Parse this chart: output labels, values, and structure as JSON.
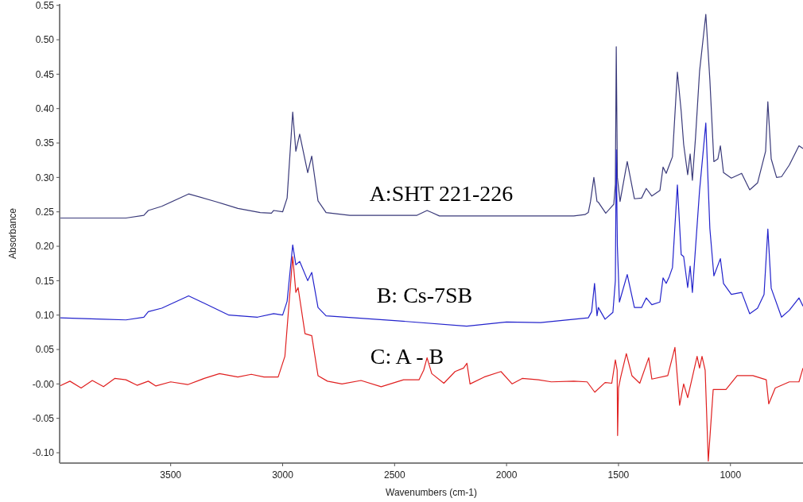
{
  "chart_data": {
    "type": "line",
    "xlabel": "Wavenumbers (cm-1)",
    "ylabel": "Absorbance",
    "xlim": [
      3996,
      676
    ],
    "xticks": [
      3500,
      3000,
      2500,
      2000,
      1500,
      1000
    ],
    "ylim": [
      -0.115,
      0.552
    ],
    "yticks": [
      {
        "value": 0.55,
        "label": "0.55"
      },
      {
        "value": 0.5,
        "label": "0.50"
      },
      {
        "value": 0.45,
        "label": "0.45"
      },
      {
        "value": 0.4,
        "label": "0.40"
      },
      {
        "value": 0.35,
        "label": "0.35"
      },
      {
        "value": 0.3,
        "label": "0.30"
      },
      {
        "value": 0.25,
        "label": "0.25"
      },
      {
        "value": 0.2,
        "label": "0.20"
      },
      {
        "value": 0.15,
        "label": "0.15"
      },
      {
        "value": 0.1,
        "label": "0.10"
      },
      {
        "value": 0.05,
        "label": "0.05"
      },
      {
        "value": 0,
        "label": "-0.00"
      },
      {
        "value": -0.05,
        "label": "-0.05"
      },
      {
        "value": -0.1,
        "label": "-0.10"
      }
    ],
    "grid": false,
    "series": [
      {
        "name": "A:SHT 221-226",
        "color": "#3a3a7a",
        "x": [
          3996,
          3700,
          3620,
          3600,
          3540,
          3420,
          3300,
          3200,
          3100,
          3050,
          3040,
          3000,
          2980,
          2955,
          2941,
          2924,
          2888,
          2870,
          2842,
          2806,
          2700,
          2400,
          2355,
          2334,
          2300,
          2000,
          1700,
          1650,
          1635,
          1625,
          1610,
          1596,
          1590,
          1557,
          1521,
          1514,
          1510,
          1505,
          1493,
          1461,
          1429,
          1397,
          1376,
          1351,
          1315,
          1301,
          1287,
          1273,
          1259,
          1237,
          1220,
          1209,
          1191,
          1180,
          1170,
          1156,
          1138,
          1110,
          1092,
          1074,
          1056,
          1045,
          1031,
          996,
          950,
          914,
          879,
          843,
          833,
          818,
          794,
          772,
          737,
          694,
          676
        ],
        "values": [
          0.241,
          0.241,
          0.245,
          0.252,
          0.258,
          0.276,
          0.265,
          0.255,
          0.249,
          0.248,
          0.252,
          0.25,
          0.27,
          0.395,
          0.338,
          0.363,
          0.307,
          0.331,
          0.266,
          0.249,
          0.245,
          0.245,
          0.252,
          0.249,
          0.244,
          0.244,
          0.244,
          0.246,
          0.249,
          0.265,
          0.3,
          0.265,
          0.264,
          0.248,
          0.261,
          0.29,
          0.49,
          0.3,
          0.265,
          0.323,
          0.269,
          0.27,
          0.284,
          0.273,
          0.281,
          0.315,
          0.306,
          0.318,
          0.33,
          0.453,
          0.396,
          0.348,
          0.304,
          0.334,
          0.296,
          0.358,
          0.454,
          0.537,
          0.442,
          0.323,
          0.327,
          0.346,
          0.307,
          0.299,
          0.306,
          0.282,
          0.292,
          0.338,
          0.41,
          0.327,
          0.3,
          0.301,
          0.318,
          0.346,
          0.342
        ]
      },
      {
        "name": "B: Cs-7SB",
        "color": "#2323cc",
        "x": [
          3996,
          3800,
          3700,
          3620,
          3600,
          3540,
          3420,
          3240,
          3112,
          3040,
          3000,
          2980,
          2955,
          2941,
          2924,
          2888,
          2870,
          2842,
          2806,
          2500,
          2178,
          2000,
          1848,
          1635,
          1620,
          1607,
          1596,
          1590,
          1560,
          1525,
          1514,
          1510,
          1505,
          1496,
          1461,
          1429,
          1397,
          1376,
          1351,
          1315,
          1301,
          1287,
          1273,
          1259,
          1237,
          1220,
          1209,
          1191,
          1180,
          1170,
          1138,
          1110,
          1092,
          1074,
          1045,
          1031,
          996,
          950,
          914,
          879,
          850,
          833,
          818,
          772,
          737,
          694,
          676
        ],
        "values": [
          0.096,
          0.094,
          0.093,
          0.097,
          0.105,
          0.11,
          0.128,
          0.1,
          0.097,
          0.102,
          0.1,
          0.12,
          0.202,
          0.173,
          0.178,
          0.15,
          0.162,
          0.111,
          0.099,
          0.092,
          0.084,
          0.09,
          0.089,
          0.096,
          0.105,
          0.146,
          0.099,
          0.111,
          0.094,
          0.104,
          0.15,
          0.34,
          0.2,
          0.119,
          0.159,
          0.111,
          0.111,
          0.125,
          0.115,
          0.119,
          0.154,
          0.146,
          0.156,
          0.169,
          0.289,
          0.188,
          0.185,
          0.14,
          0.171,
          0.133,
          0.281,
          0.379,
          0.226,
          0.157,
          0.182,
          0.146,
          0.13,
          0.133,
          0.102,
          0.11,
          0.13,
          0.225,
          0.139,
          0.097,
          0.107,
          0.125,
          0.113
        ]
      },
      {
        "name": "C: A - B",
        "color": "#e02020",
        "x": [
          3996,
          3950,
          3900,
          3850,
          3800,
          3750,
          3700,
          3650,
          3600,
          3566,
          3500,
          3424,
          3350,
          3282,
          3200,
          3140,
          3083,
          3020,
          2990,
          2955,
          2941,
          2931,
          2900,
          2870,
          2842,
          2800,
          2735,
          2650,
          2560,
          2460,
          2391,
          2370,
          2355,
          2334,
          2280,
          2230,
          2192,
          2177,
          2163,
          2100,
          2025,
          1975,
          1930,
          1858,
          1800,
          1700,
          1640,
          1606,
          1560,
          1530,
          1514,
          1506,
          1504,
          1500,
          1490,
          1465,
          1440,
          1405,
          1365,
          1351,
          1280,
          1248,
          1227,
          1209,
          1191,
          1149,
          1138,
          1127,
          1113,
          1099,
          1077,
          1020,
          970,
          900,
          840,
          829,
          800,
          737,
          694,
          676
        ],
        "values": [
          -0.003,
          0.004,
          -0.006,
          0.005,
          -0.004,
          0.008,
          0.006,
          -0.002,
          0.004,
          -0.003,
          0.003,
          -0.001,
          0.008,
          0.015,
          0.01,
          0.014,
          0.01,
          0.01,
          0.04,
          0.185,
          0.133,
          0.14,
          0.073,
          0.07,
          0.012,
          0.004,
          0.0,
          0.005,
          -0.004,
          0.006,
          0.006,
          0.02,
          0.038,
          0.015,
          0.001,
          0.018,
          0.023,
          0.03,
          0.0,
          0.01,
          0.018,
          0.0,
          0.008,
          0.006,
          0.003,
          0.004,
          0.003,
          -0.012,
          0.002,
          0.001,
          0.035,
          0.02,
          -0.075,
          -0.006,
          0.01,
          0.044,
          0.012,
          0.001,
          0.038,
          0.007,
          0.012,
          0.053,
          -0.031,
          0.0,
          -0.02,
          0.04,
          0.023,
          0.04,
          0.02,
          -0.112,
          -0.008,
          -0.008,
          0.012,
          0.012,
          0.006,
          -0.029,
          -0.006,
          0.003,
          0.003,
          0.023
        ]
      }
    ]
  }
}
